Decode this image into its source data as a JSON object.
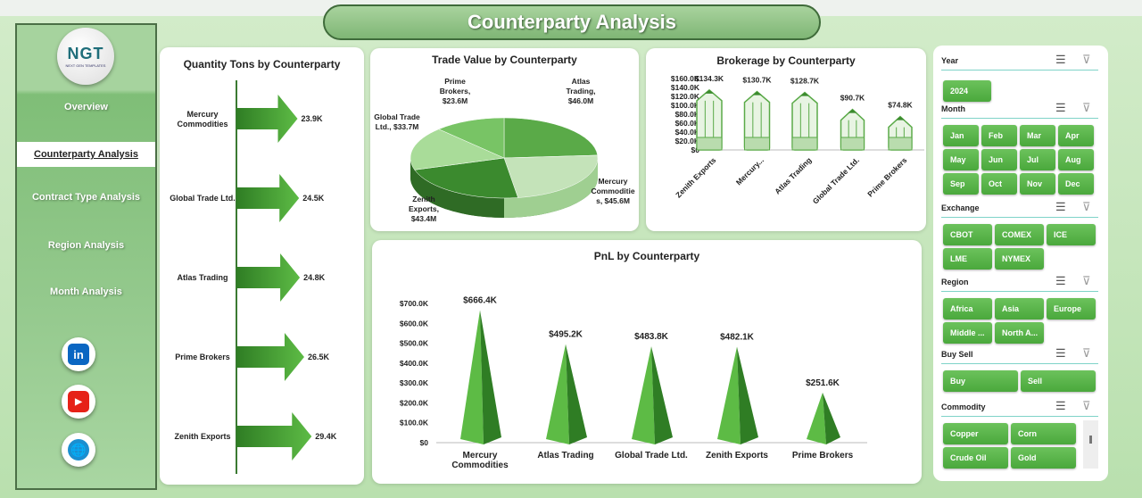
{
  "title": "Counterparty Analysis",
  "sidebar": {
    "logo_text": "NGT",
    "logo_sub": "NEXT GEN TEMPLATES",
    "items": [
      {
        "label": "Overview"
      },
      {
        "label": "Counterparty Analysis"
      },
      {
        "label": "Contract Type Analysis"
      },
      {
        "label": "Region Analysis"
      },
      {
        "label": "Month Analysis"
      }
    ],
    "social": [
      {
        "icon": "linkedin-icon",
        "glyph": "in",
        "color": "#0a66c2"
      },
      {
        "icon": "youtube-icon",
        "glyph": "▶",
        "color": "#e62117"
      },
      {
        "icon": "globe-icon",
        "glyph": "🌐",
        "color": "#1a8fd0"
      }
    ]
  },
  "chart_data": [
    {
      "type": "bar",
      "title": "Quantity Tons by Counterparty",
      "categories": [
        "Mercury Commodities",
        "Global Trade Ltd.",
        "Atlas Trading",
        "Prime Brokers",
        "Zenith Exports"
      ],
      "values": [
        23.9,
        24.5,
        24.8,
        26.5,
        29.4
      ],
      "labels": [
        "23.9K",
        "24.5K",
        "24.8K",
        "26.5K",
        "29.4K"
      ],
      "unit": "K tons",
      "color": "#4fae3f"
    },
    {
      "type": "pie",
      "title": "Trade Value by Counterparty",
      "categories": [
        "Atlas Trading",
        "Mercury Commodities",
        "Zenith Exports",
        "Global Trade Ltd.",
        "Prime Brokers"
      ],
      "values": [
        46.0,
        45.6,
        43.4,
        33.7,
        23.6
      ],
      "labels": [
        "Atlas Trading, $46.0M",
        "Mercury Commodities, $45.6M",
        "Zenith Exports, $43.4M",
        "Global Trade Ltd., $33.7M",
        "Prime Brokers, $23.6M"
      ],
      "colors": [
        "#5aaa48",
        "#c4e3b9",
        "#3b8a2e",
        "#a9dc99",
        "#78c465"
      ]
    },
    {
      "type": "bar",
      "title": "Brokerage by Counterparty",
      "categories": [
        "Zenith Exports",
        "Mercury...",
        "Atlas Trading",
        "Global Trade Ltd.",
        "Prime Brokers"
      ],
      "values": [
        134.3,
        130.7,
        128.7,
        90.7,
        74.8
      ],
      "labels": [
        "$134.3K",
        "$130.7K",
        "$128.7K",
        "$90.7K",
        "$74.8K"
      ],
      "yticks": [
        "$0",
        "$20.0K",
        "$40.0K",
        "$60.0K",
        "$80.0K",
        "$100.0K",
        "$120.0K",
        "$140.0K",
        "$160.0K"
      ],
      "ylim": [
        0,
        160
      ]
    },
    {
      "type": "bar",
      "title": "PnL by Counterparty",
      "categories": [
        "Mercury Commodities",
        "Atlas Trading",
        "Global Trade Ltd.",
        "Zenith Exports",
        "Prime Brokers"
      ],
      "values": [
        666.4,
        495.2,
        483.8,
        482.1,
        251.6
      ],
      "labels": [
        "$666.4K",
        "$495.2K",
        "$483.8K",
        "$482.1K",
        "$251.6K"
      ],
      "yticks": [
        "$0",
        "$100.0K",
        "$200.0K",
        "$300.0K",
        "$400.0K",
        "$500.0K",
        "$600.0K",
        "$700.0K"
      ],
      "ylim": [
        0,
        700
      ]
    }
  ],
  "slicers": [
    {
      "title": "Year",
      "items": [
        "2024"
      ]
    },
    {
      "title": "Month",
      "items": [
        "Jan",
        "Feb",
        "Mar",
        "Apr",
        "May",
        "Jun",
        "Jul",
        "Aug",
        "Sep",
        "Oct",
        "Nov",
        "Dec"
      ]
    },
    {
      "title": "Exchange",
      "items": [
        "CBOT",
        "COMEX",
        "ICE",
        "LME",
        "NYMEX"
      ]
    },
    {
      "title": "Region",
      "items": [
        "Africa",
        "Asia",
        "Europe",
        "Middle ...",
        "North A..."
      ]
    },
    {
      "title": "Buy Sell",
      "items": [
        "Buy",
        "Sell"
      ]
    },
    {
      "title": "Commodity",
      "items": [
        "Copper",
        "Corn",
        "Crude Oil",
        "Gold"
      ]
    }
  ]
}
